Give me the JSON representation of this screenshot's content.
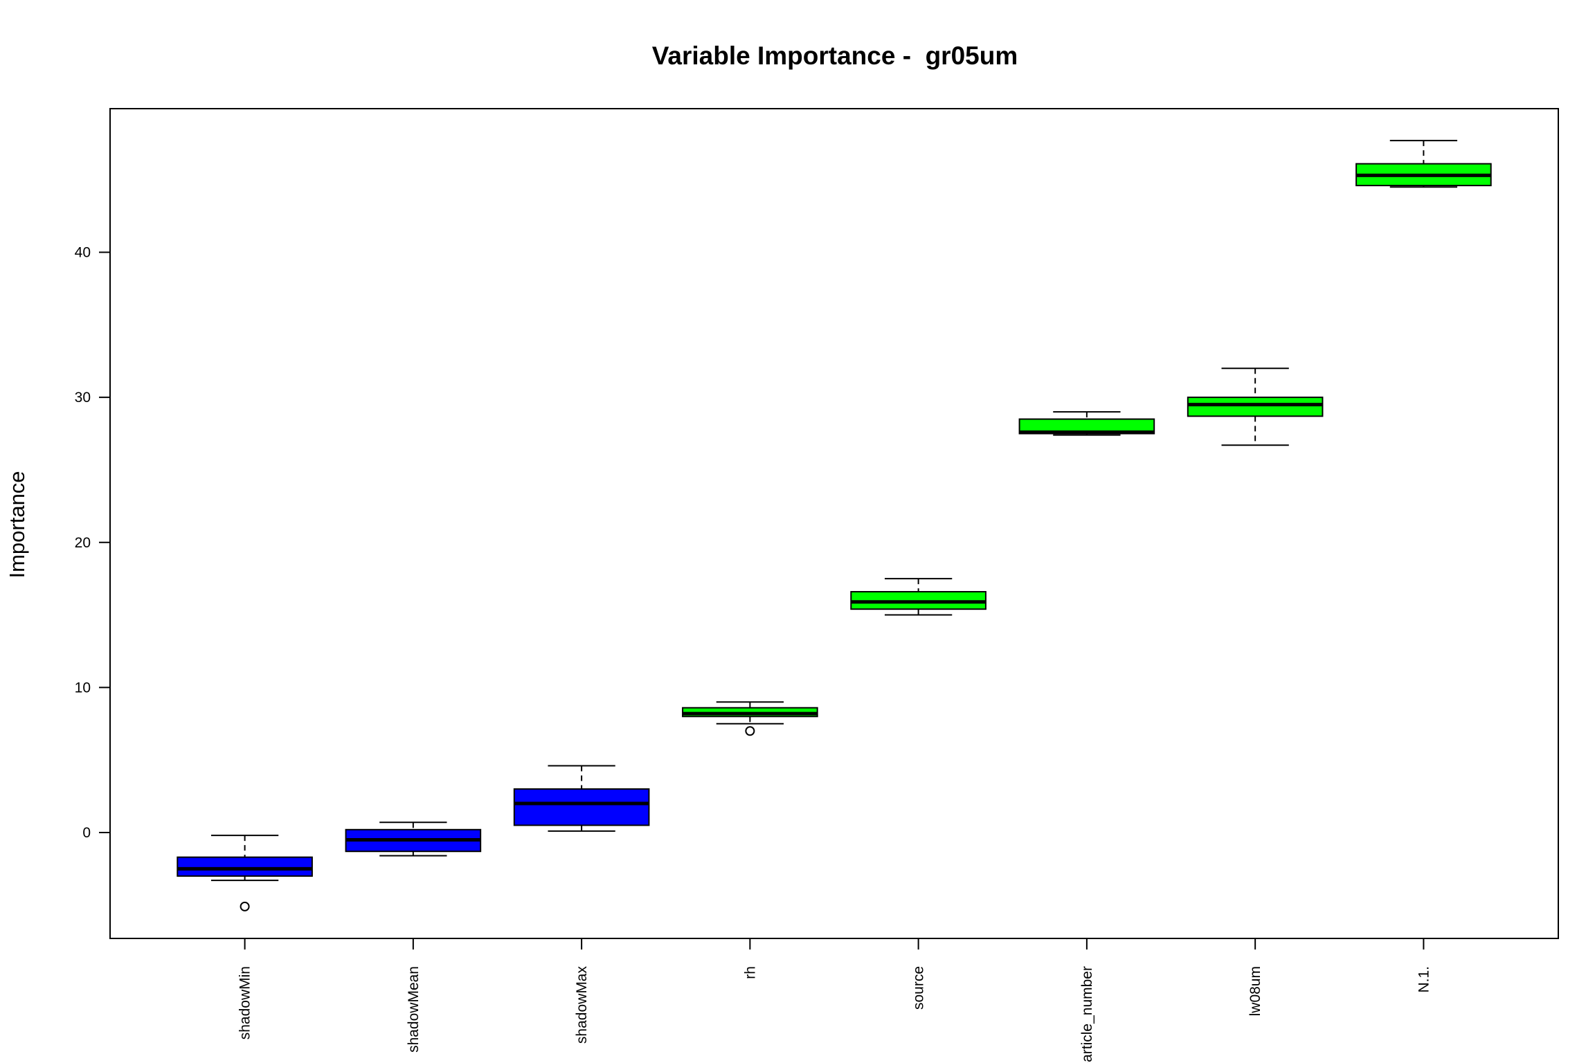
{
  "chart_data": {
    "type": "box",
    "title": "Variable Importance -  gr05um",
    "xlabel": "",
    "ylabel": "Importance",
    "ylim": [
      -7.3,
      49.9
    ],
    "yticks": [
      0,
      10,
      20,
      30,
      40
    ],
    "categories": [
      "shadowMin",
      "shadowMean",
      "shadowMax",
      "rh",
      "source",
      "particle_number",
      "lw08um",
      "N.1."
    ],
    "colors": {
      "shadow": "#0000ff",
      "accepted": "#00ff00",
      "outline": "#000000"
    },
    "boxes": [
      {
        "name": "shadowMin",
        "group": "shadow",
        "whisker_low": -3.3,
        "q1": -3.0,
        "median": -2.5,
        "q3": -1.7,
        "whisker_high": -0.2,
        "outliers": [
          -5.1
        ]
      },
      {
        "name": "shadowMean",
        "group": "shadow",
        "whisker_low": -1.6,
        "q1": -1.3,
        "median": -0.5,
        "q3": 0.2,
        "whisker_high": 0.7,
        "outliers": []
      },
      {
        "name": "shadowMax",
        "group": "shadow",
        "whisker_low": 0.1,
        "q1": 0.5,
        "median": 2.0,
        "q3": 3.0,
        "whisker_high": 4.6,
        "outliers": []
      },
      {
        "name": "rh",
        "group": "accepted",
        "whisker_low": 7.5,
        "q1": 8.0,
        "median": 8.2,
        "q3": 8.6,
        "whisker_high": 9.0,
        "outliers": [
          7.0
        ]
      },
      {
        "name": "source",
        "group": "accepted",
        "whisker_low": 15.0,
        "q1": 15.4,
        "median": 15.9,
        "q3": 16.6,
        "whisker_high": 17.5,
        "outliers": []
      },
      {
        "name": "particle_number",
        "group": "accepted",
        "whisker_low": 27.4,
        "q1": 27.5,
        "median": 27.6,
        "q3": 28.5,
        "whisker_high": 29.0,
        "outliers": []
      },
      {
        "name": "lw08um",
        "group": "accepted",
        "whisker_low": 26.7,
        "q1": 28.7,
        "median": 29.5,
        "q3": 30.0,
        "whisker_high": 32.0,
        "outliers": []
      },
      {
        "name": "N.1.",
        "group": "accepted",
        "whisker_low": 44.5,
        "q1": 44.6,
        "median": 45.3,
        "q3": 46.1,
        "whisker_high": 47.7,
        "outliers": []
      }
    ],
    "grid": false,
    "legend": "none"
  }
}
